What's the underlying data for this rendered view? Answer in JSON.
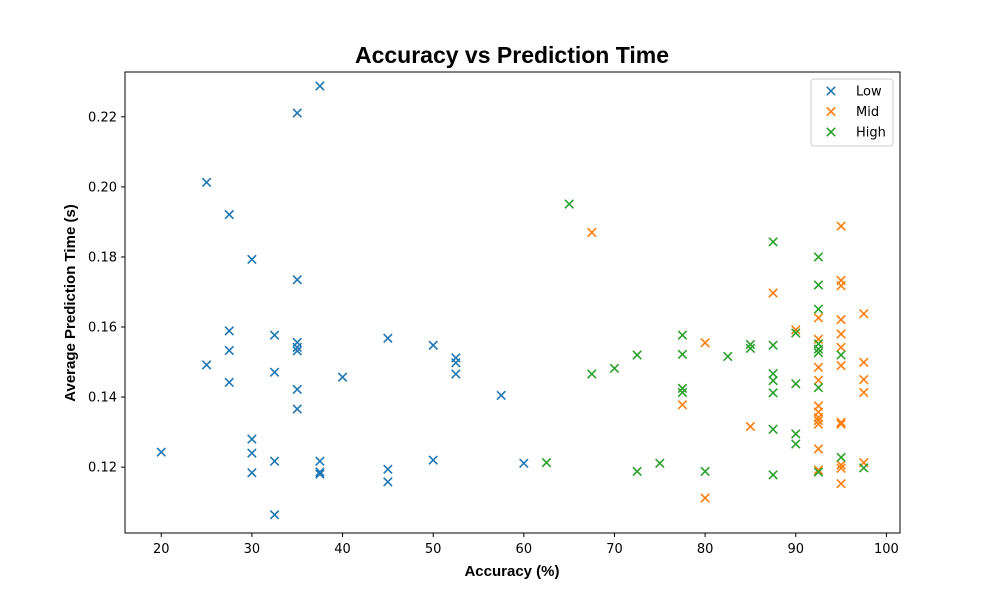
{
  "chart_data": {
    "type": "scatter",
    "title": "Accuracy vs Prediction Time",
    "xlabel": "Accuracy (%)",
    "ylabel": "Average Prediction Time (s)",
    "xlim": [
      16,
      101.5
    ],
    "ylim": [
      0.1012,
      0.2328
    ],
    "x_ticks": [
      "20",
      "30",
      "40",
      "50",
      "60",
      "70",
      "80",
      "90",
      "100"
    ],
    "y_ticks": [
      "0.12",
      "0.14",
      "0.16",
      "0.18",
      "0.20",
      "0.22"
    ],
    "marker": "x",
    "grid": false,
    "legend_position": "top-right",
    "series": [
      {
        "name": "Low",
        "color": "#1f77b4",
        "points": [
          [
            20,
            0.1243
          ],
          [
            25,
            0.2013
          ],
          [
            25,
            0.1492
          ],
          [
            27.5,
            0.1921
          ],
          [
            27.5,
            0.1589
          ],
          [
            27.5,
            0.1533
          ],
          [
            27.5,
            0.1442
          ],
          [
            30,
            0.1793
          ],
          [
            30,
            0.128
          ],
          [
            30,
            0.124
          ],
          [
            30,
            0.1184
          ],
          [
            32.5,
            0.1577
          ],
          [
            32.5,
            0.1471
          ],
          [
            32.5,
            0.1217
          ],
          [
            32.5,
            0.1064
          ],
          [
            35,
            0.2211
          ],
          [
            35,
            0.1735
          ],
          [
            35,
            0.1556
          ],
          [
            35,
            0.1542
          ],
          [
            35,
            0.1532
          ],
          [
            35,
            0.1422
          ],
          [
            35,
            0.1366
          ],
          [
            37.5,
            0.2288
          ],
          [
            37.5,
            0.1217
          ],
          [
            37.5,
            0.1186
          ],
          [
            37.5,
            0.118
          ],
          [
            40,
            0.1457
          ],
          [
            45,
            0.1568
          ],
          [
            45,
            0.1194
          ],
          [
            45,
            0.1158
          ],
          [
            50,
            0.1548
          ],
          [
            50,
            0.122
          ],
          [
            52.5,
            0.1512
          ],
          [
            52.5,
            0.1498
          ],
          [
            52.5,
            0.1466
          ],
          [
            57.5,
            0.1405
          ],
          [
            60,
            0.1211
          ]
        ]
      },
      {
        "name": "Mid",
        "color": "#ff7f0e",
        "points": [
          [
            67.5,
            0.187
          ],
          [
            77.5,
            0.1378
          ],
          [
            80,
            0.1555
          ],
          [
            80,
            0.1112
          ],
          [
            85,
            0.1316
          ],
          [
            87.5,
            0.1697
          ],
          [
            90,
            0.1592
          ],
          [
            92.5,
            0.1626
          ],
          [
            92.5,
            0.1565
          ],
          [
            92.5,
            0.1485
          ],
          [
            92.5,
            0.1448
          ],
          [
            92.5,
            0.1375
          ],
          [
            92.5,
            0.1357
          ],
          [
            92.5,
            0.1342
          ],
          [
            92.5,
            0.1333
          ],
          [
            92.5,
            0.1323
          ],
          [
            92.5,
            0.1252
          ],
          [
            92.5,
            0.1192
          ],
          [
            95,
            0.1888
          ],
          [
            95,
            0.1733
          ],
          [
            95,
            0.1718
          ],
          [
            95,
            0.1621
          ],
          [
            95,
            0.158
          ],
          [
            95,
            0.1542
          ],
          [
            95,
            0.149
          ],
          [
            95,
            0.1328
          ],
          [
            95,
            0.1323
          ],
          [
            95,
            0.1206
          ],
          [
            95,
            0.1197
          ],
          [
            95,
            0.1153
          ],
          [
            97.5,
            0.1638
          ],
          [
            97.5,
            0.1499
          ],
          [
            97.5,
            0.145
          ],
          [
            97.5,
            0.1413
          ],
          [
            97.5,
            0.1213
          ]
        ]
      },
      {
        "name": "High",
        "color": "#2ca02c",
        "points": [
          [
            62.5,
            0.1213
          ],
          [
            65,
            0.1951
          ],
          [
            67.5,
            0.1466
          ],
          [
            70,
            0.1482
          ],
          [
            72.5,
            0.152
          ],
          [
            72.5,
            0.1188
          ],
          [
            75,
            0.1211
          ],
          [
            77.5,
            0.1577
          ],
          [
            77.5,
            0.1522
          ],
          [
            77.5,
            0.1425
          ],
          [
            77.5,
            0.1413
          ],
          [
            80,
            0.1188
          ],
          [
            82.5,
            0.1516
          ],
          [
            85,
            0.155
          ],
          [
            85,
            0.1539
          ],
          [
            87.5,
            0.1843
          ],
          [
            87.5,
            0.1548
          ],
          [
            87.5,
            0.1467
          ],
          [
            87.5,
            0.1447
          ],
          [
            87.5,
            0.1412
          ],
          [
            87.5,
            0.1308
          ],
          [
            87.5,
            0.1178
          ],
          [
            90,
            0.1583
          ],
          [
            90,
            0.1438
          ],
          [
            90,
            0.1295
          ],
          [
            90,
            0.1266
          ],
          [
            92.5,
            0.18
          ],
          [
            92.5,
            0.172
          ],
          [
            92.5,
            0.1651
          ],
          [
            92.5,
            0.1552
          ],
          [
            92.5,
            0.1537
          ],
          [
            92.5,
            0.1527
          ],
          [
            92.5,
            0.1427
          ],
          [
            92.5,
            0.1186
          ],
          [
            95,
            0.152
          ],
          [
            95,
            0.1228
          ],
          [
            97.5,
            0.1198
          ]
        ]
      }
    ]
  }
}
